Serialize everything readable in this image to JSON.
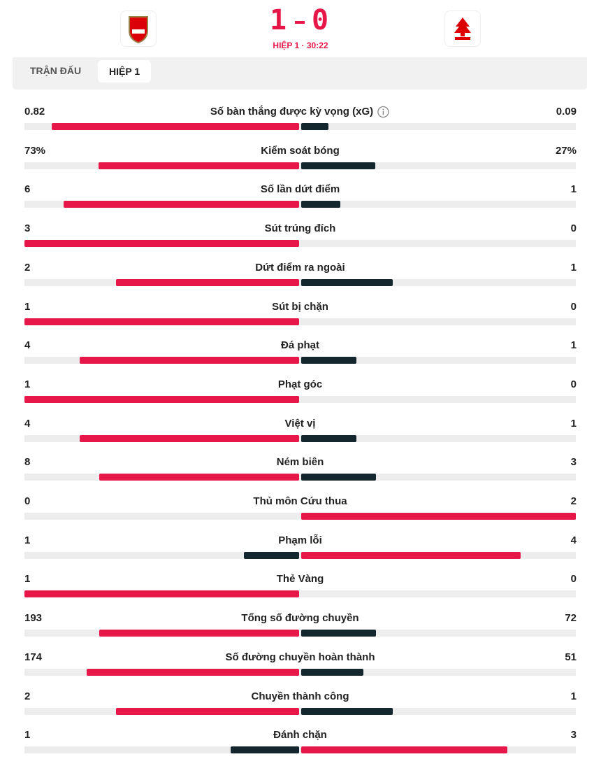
{
  "header": {
    "score": {
      "home": 1,
      "away": 0
    },
    "period": "HIỆP 1 · 30:22"
  },
  "tabs": [
    "TRẬN ĐẤU",
    "HIỆP 1"
  ],
  "colors": {
    "leader": "#e8174a",
    "trailer": "#14262e",
    "track": "#ededed"
  },
  "stats": [
    {
      "label": "Số bàn thắng được kỳ vọng (xG)",
      "home": 0.82,
      "away": 0.09,
      "info": true
    },
    {
      "label": "Kiểm soát bóng",
      "home": 73,
      "away": 27,
      "home_label": "73%",
      "away_label": "27%"
    },
    {
      "label": "Số lần dứt điểm",
      "home": 6,
      "away": 1
    },
    {
      "label": "Sút trúng đích",
      "home": 3,
      "away": 0
    },
    {
      "label": "Dứt điểm ra ngoài",
      "home": 2,
      "away": 1
    },
    {
      "label": "Sút bị chặn",
      "home": 1,
      "away": 0
    },
    {
      "label": "Đá phạt",
      "home": 4,
      "away": 1
    },
    {
      "label": "Phạt góc",
      "home": 1,
      "away": 0
    },
    {
      "label": "Việt vị",
      "home": 4,
      "away": 1
    },
    {
      "label": "Ném biên",
      "home": 8,
      "away": 3
    },
    {
      "label": "Thủ môn Cứu thua",
      "home": 0,
      "away": 2
    },
    {
      "label": "Phạm lỗi",
      "home": 1,
      "away": 4
    },
    {
      "label": "Thẻ Vàng",
      "home": 1,
      "away": 0
    },
    {
      "label": "Tổng số đường chuyền",
      "home": 193,
      "away": 72
    },
    {
      "label": "Số đường chuyền hoàn thành",
      "home": 174,
      "away": 51
    },
    {
      "label": "Chuyền thành công",
      "home": 2,
      "away": 1
    },
    {
      "label": "Đánh chặn",
      "home": 1,
      "away": 3
    }
  ]
}
